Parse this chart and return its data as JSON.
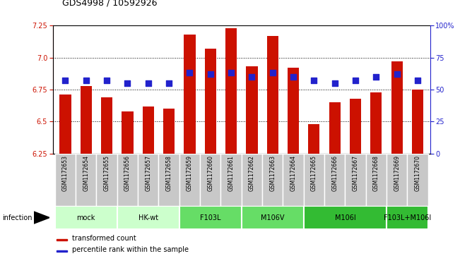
{
  "title": "GDS4998 / 10592926",
  "samples": [
    "GSM1172653",
    "GSM1172654",
    "GSM1172655",
    "GSM1172656",
    "GSM1172657",
    "GSM1172658",
    "GSM1172659",
    "GSM1172660",
    "GSM1172661",
    "GSM1172662",
    "GSM1172663",
    "GSM1172664",
    "GSM1172665",
    "GSM1172666",
    "GSM1172667",
    "GSM1172668",
    "GSM1172669",
    "GSM1172670"
  ],
  "transformed_counts": [
    6.71,
    6.78,
    6.69,
    6.58,
    6.62,
    6.6,
    7.18,
    7.07,
    7.23,
    6.93,
    7.17,
    6.92,
    6.48,
    6.65,
    6.68,
    6.73,
    6.97,
    6.75
  ],
  "percentile_ranks": [
    57,
    57,
    57,
    55,
    55,
    55,
    63,
    62,
    63,
    60,
    63,
    60,
    57,
    55,
    57,
    60,
    62,
    57
  ],
  "groups": [
    {
      "label": "mock",
      "start": 0,
      "end": 2,
      "color": "#ccffcc"
    },
    {
      "label": "HK-wt",
      "start": 3,
      "end": 5,
      "color": "#ccffcc"
    },
    {
      "label": "F103L",
      "start": 6,
      "end": 8,
      "color": "#66dd66"
    },
    {
      "label": "M106V",
      "start": 9,
      "end": 11,
      "color": "#66dd66"
    },
    {
      "label": "M106I",
      "start": 12,
      "end": 15,
      "color": "#33bb33"
    },
    {
      "label": "F103L+M106I",
      "start": 16,
      "end": 17,
      "color": "#33bb33"
    }
  ],
  "ylim_left": [
    6.25,
    7.25
  ],
  "ylim_right": [
    0,
    100
  ],
  "yticks_left": [
    6.25,
    6.5,
    6.75,
    7.0,
    7.25
  ],
  "yticks_right": [
    0,
    25,
    50,
    75,
    100
  ],
  "bar_color": "#cc1100",
  "dot_color": "#2222cc",
  "bar_width": 0.55,
  "dot_size": 30,
  "xlabel_infection": "infection",
  "legend_bar": "transformed count",
  "legend_dot": "percentile rank within the sample"
}
